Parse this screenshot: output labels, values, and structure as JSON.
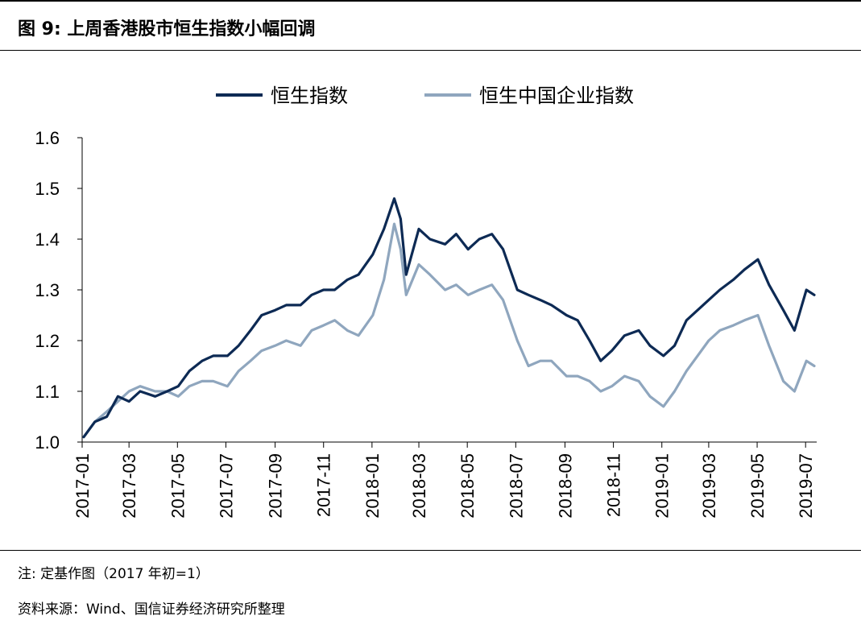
{
  "figure": {
    "title": "图 9:  上周香港股市恒生指数小幅回调",
    "note": "注:  定基作图（2017 年初=1）",
    "source": "资料来源：Wind、国信证券经济研究所整理"
  },
  "chart_data": {
    "type": "line",
    "title": "",
    "xlabel": "",
    "ylabel": "",
    "ylim": [
      1.0,
      1.6
    ],
    "yticks": [
      "1.0",
      "1.1",
      "1.2",
      "1.3",
      "1.4",
      "1.5",
      "1.6"
    ],
    "xlim": [
      "2017-01",
      "2019-07"
    ],
    "xticks": [
      "2017-01",
      "2017-03",
      "2017-05",
      "2017-07",
      "2017-09",
      "2017-11",
      "2018-01",
      "2018-03",
      "2018-05",
      "2018-07",
      "2018-09",
      "2018-11",
      "2019-01",
      "2019-03",
      "2019-05",
      "2019-07"
    ],
    "grid": false,
    "legend_position": "top-center",
    "x": [
      "2017-01-03",
      "2017-01-17",
      "2017-02-01",
      "2017-02-15",
      "2017-03-01",
      "2017-03-15",
      "2017-04-03",
      "2017-04-18",
      "2017-05-02",
      "2017-05-16",
      "2017-06-01",
      "2017-06-15",
      "2017-07-03",
      "2017-07-17",
      "2017-08-01",
      "2017-08-15",
      "2017-09-01",
      "2017-09-15",
      "2017-10-03",
      "2017-10-17",
      "2017-11-01",
      "2017-11-15",
      "2017-12-01",
      "2017-12-15",
      "2018-01-02",
      "2018-01-16",
      "2018-01-29",
      "2018-02-06",
      "2018-02-13",
      "2018-03-01",
      "2018-03-15",
      "2018-04-03",
      "2018-04-17",
      "2018-05-02",
      "2018-05-16",
      "2018-06-01",
      "2018-06-15",
      "2018-07-03",
      "2018-07-17",
      "2018-08-01",
      "2018-08-15",
      "2018-09-03",
      "2018-09-17",
      "2018-10-02",
      "2018-10-16",
      "2018-10-30",
      "2018-11-15",
      "2018-12-03",
      "2018-12-17",
      "2019-01-03",
      "2019-01-17",
      "2019-02-01",
      "2019-02-15",
      "2019-03-01",
      "2019-03-15",
      "2019-04-01",
      "2019-04-15",
      "2019-05-02",
      "2019-05-16",
      "2019-06-03",
      "2019-06-17",
      "2019-07-02",
      "2019-07-12"
    ],
    "series": [
      {
        "name": "恒生指数",
        "color": "#0d2a54",
        "values": [
          1.01,
          1.04,
          1.05,
          1.09,
          1.08,
          1.1,
          1.09,
          1.1,
          1.11,
          1.14,
          1.16,
          1.17,
          1.17,
          1.19,
          1.22,
          1.25,
          1.26,
          1.27,
          1.27,
          1.29,
          1.3,
          1.3,
          1.32,
          1.33,
          1.37,
          1.42,
          1.48,
          1.44,
          1.33,
          1.42,
          1.4,
          1.39,
          1.41,
          1.38,
          1.4,
          1.41,
          1.38,
          1.3,
          1.29,
          1.28,
          1.27,
          1.25,
          1.24,
          1.2,
          1.16,
          1.18,
          1.21,
          1.22,
          1.19,
          1.17,
          1.19,
          1.24,
          1.26,
          1.28,
          1.3,
          1.32,
          1.34,
          1.36,
          1.31,
          1.26,
          1.22,
          1.3,
          1.29
        ]
      },
      {
        "name": "恒生中国企业指数",
        "color": "#8fa6be",
        "values": [
          1.01,
          1.04,
          1.06,
          1.08,
          1.1,
          1.11,
          1.1,
          1.1,
          1.09,
          1.11,
          1.12,
          1.12,
          1.11,
          1.14,
          1.16,
          1.18,
          1.19,
          1.2,
          1.19,
          1.22,
          1.23,
          1.24,
          1.22,
          1.21,
          1.25,
          1.32,
          1.43,
          1.38,
          1.29,
          1.35,
          1.33,
          1.3,
          1.31,
          1.29,
          1.3,
          1.31,
          1.28,
          1.2,
          1.15,
          1.16,
          1.16,
          1.13,
          1.13,
          1.12,
          1.1,
          1.11,
          1.13,
          1.12,
          1.09,
          1.07,
          1.1,
          1.14,
          1.17,
          1.2,
          1.22,
          1.23,
          1.24,
          1.25,
          1.19,
          1.12,
          1.1,
          1.16,
          1.15
        ]
      }
    ]
  }
}
